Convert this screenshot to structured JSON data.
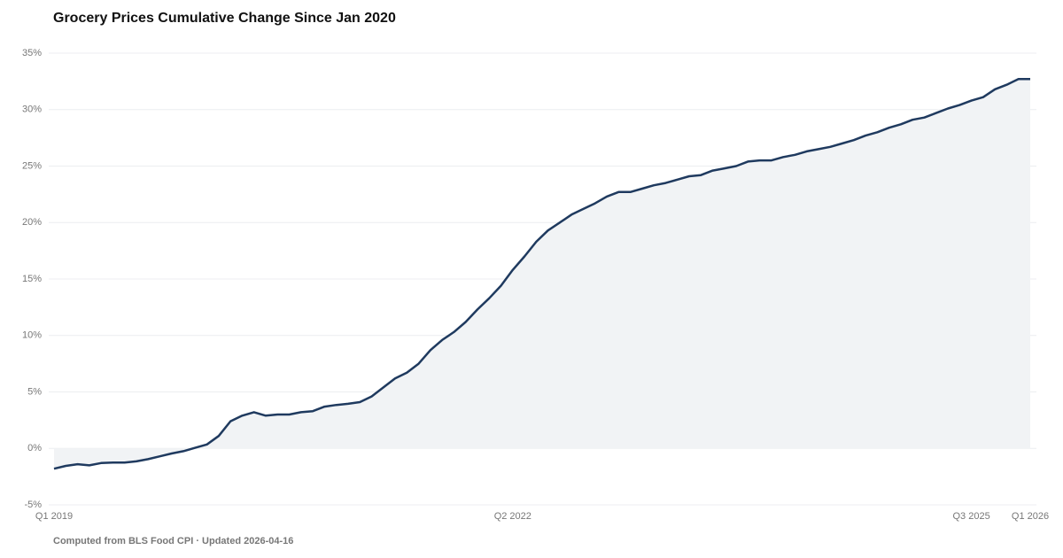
{
  "chart_data": {
    "type": "line",
    "title": "Grocery Prices Cumulative Change Since Jan 2020",
    "source": "Computed from BLS Food CPI · Updated 2026-04-16",
    "categories": [
      "Q1 2019",
      null,
      null,
      null,
      null,
      null,
      null,
      null,
      null,
      null,
      null,
      null,
      null,
      null,
      null,
      null,
      null,
      null,
      null,
      null,
      null,
      null,
      null,
      null,
      null,
      null,
      null,
      null,
      null,
      null,
      null,
      null,
      null,
      null,
      null,
      null,
      null,
      null,
      null,
      "Q2 2022",
      null,
      null,
      null,
      null,
      null,
      null,
      null,
      null,
      null,
      null,
      null,
      null,
      null,
      null,
      null,
      null,
      null,
      null,
      null,
      null,
      null,
      null,
      null,
      null,
      null,
      null,
      null,
      null,
      null,
      null,
      null,
      null,
      null,
      null,
      null,
      null,
      null,
      null,
      "Q3 2025",
      null,
      null,
      null,
      null,
      "Q1 2026"
    ],
    "series": [
      {
        "color": "#1f3a5f",
        "fill": "#f1f3f5",
        "values": [
          -1.8,
          -1.55,
          -1.4,
          -1.5,
          -1.3,
          -1.25,
          -1.25,
          -1.15,
          -0.95,
          -0.7,
          -0.45,
          -0.25,
          0.05,
          0.35,
          1.1,
          2.4,
          2.9,
          3.2,
          2.9,
          3.0,
          3.0,
          3.2,
          3.3,
          3.7,
          3.85,
          3.95,
          4.1,
          4.6,
          5.4,
          6.2,
          6.7,
          7.5,
          8.7,
          9.6,
          10.3,
          11.2,
          12.3,
          13.3,
          14.4,
          15.8,
          17.0,
          18.3,
          19.3,
          20.0,
          20.7,
          21.2,
          21.7,
          22.3,
          22.7,
          22.7,
          23.0,
          23.3,
          23.5,
          23.8,
          24.1,
          24.2,
          24.6,
          24.8,
          25.0,
          25.4,
          25.5,
          25.5,
          25.8,
          26.0,
          26.3,
          26.5,
          26.7,
          27.0,
          27.3,
          27.7,
          28.0,
          28.4,
          28.7,
          29.1,
          29.3,
          29.7,
          30.1,
          30.4,
          30.8,
          31.1,
          31.8,
          32.2,
          32.7,
          32.7
        ]
      }
    ],
    "ylim": [
      -5,
      35
    ],
    "yticks": [
      {
        "value": -5,
        "label": "-5%"
      },
      {
        "value": 0,
        "label": "0%"
      },
      {
        "value": 5,
        "label": "5%"
      },
      {
        "value": 10,
        "label": "10%"
      },
      {
        "value": 15,
        "label": "15%"
      },
      {
        "value": 20,
        "label": "20%"
      },
      {
        "value": 25,
        "label": "25%"
      },
      {
        "value": 30,
        "label": "30%"
      },
      {
        "value": 35,
        "label": "35%"
      }
    ],
    "grid": true
  }
}
